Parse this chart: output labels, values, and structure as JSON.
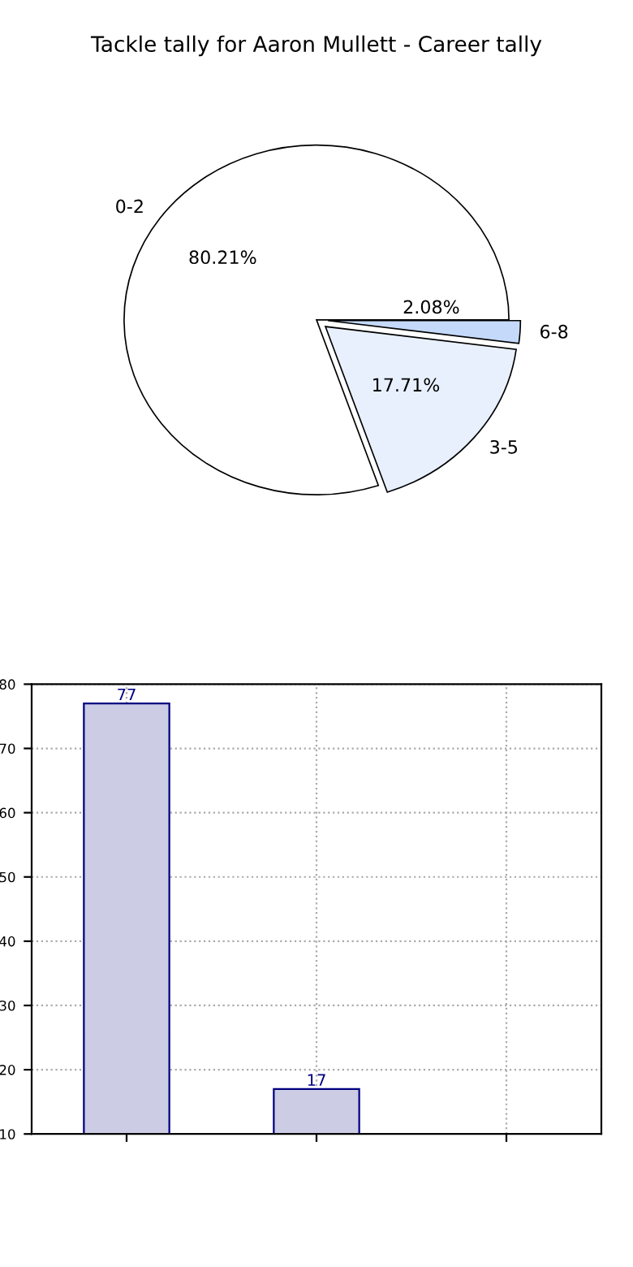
{
  "chart_data": [
    {
      "type": "pie",
      "title": "Tackle tally for Aaron Mullett - Career tally",
      "categories": [
        "0-2",
        "3-5",
        "6-8"
      ],
      "values": [
        80.21,
        17.71,
        2.08
      ],
      "colors": [
        "#ffffff",
        "#e8f0fe",
        "#c5d9fb"
      ],
      "value_labels": [
        "80.21%",
        "17.71%",
        "2.08%"
      ]
    },
    {
      "type": "bar",
      "categories": [
        null,
        null,
        null
      ],
      "values": [
        77,
        17,
        null
      ],
      "color": "#ccccE4",
      "ylim": [
        10,
        80
      ],
      "yticks": [
        10,
        20,
        30,
        40,
        50,
        60,
        70,
        80
      ],
      "grid": true,
      "data_labels": true
    }
  ]
}
